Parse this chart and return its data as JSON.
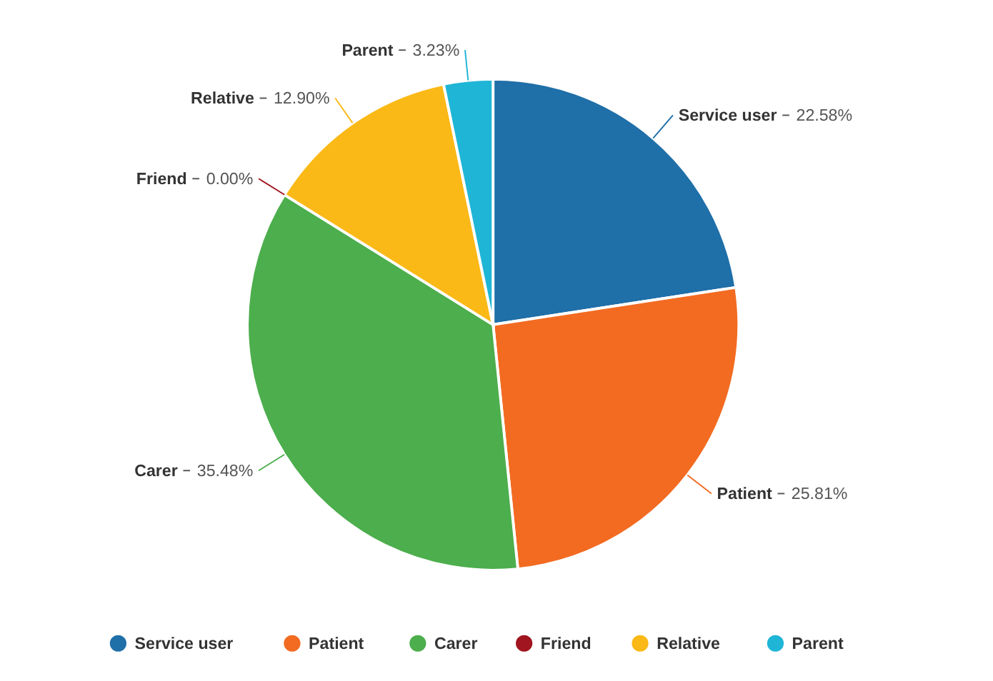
{
  "chart_data": {
    "type": "pie",
    "categories": [
      "Service user",
      "Patient",
      "Carer",
      "Friend",
      "Relative",
      "Parent"
    ],
    "values": [
      22.58,
      25.81,
      35.48,
      0.0,
      12.9,
      3.23
    ],
    "value_labels": [
      "22.58%",
      "25.81%",
      "35.48%",
      "0.00%",
      "12.90%",
      "3.23%"
    ],
    "colors": [
      "#1f6fa8",
      "#f26b21",
      "#4cae4c",
      "#a0151f",
      "#fbb917",
      "#1fb5d6"
    ],
    "legend": "bottom"
  }
}
